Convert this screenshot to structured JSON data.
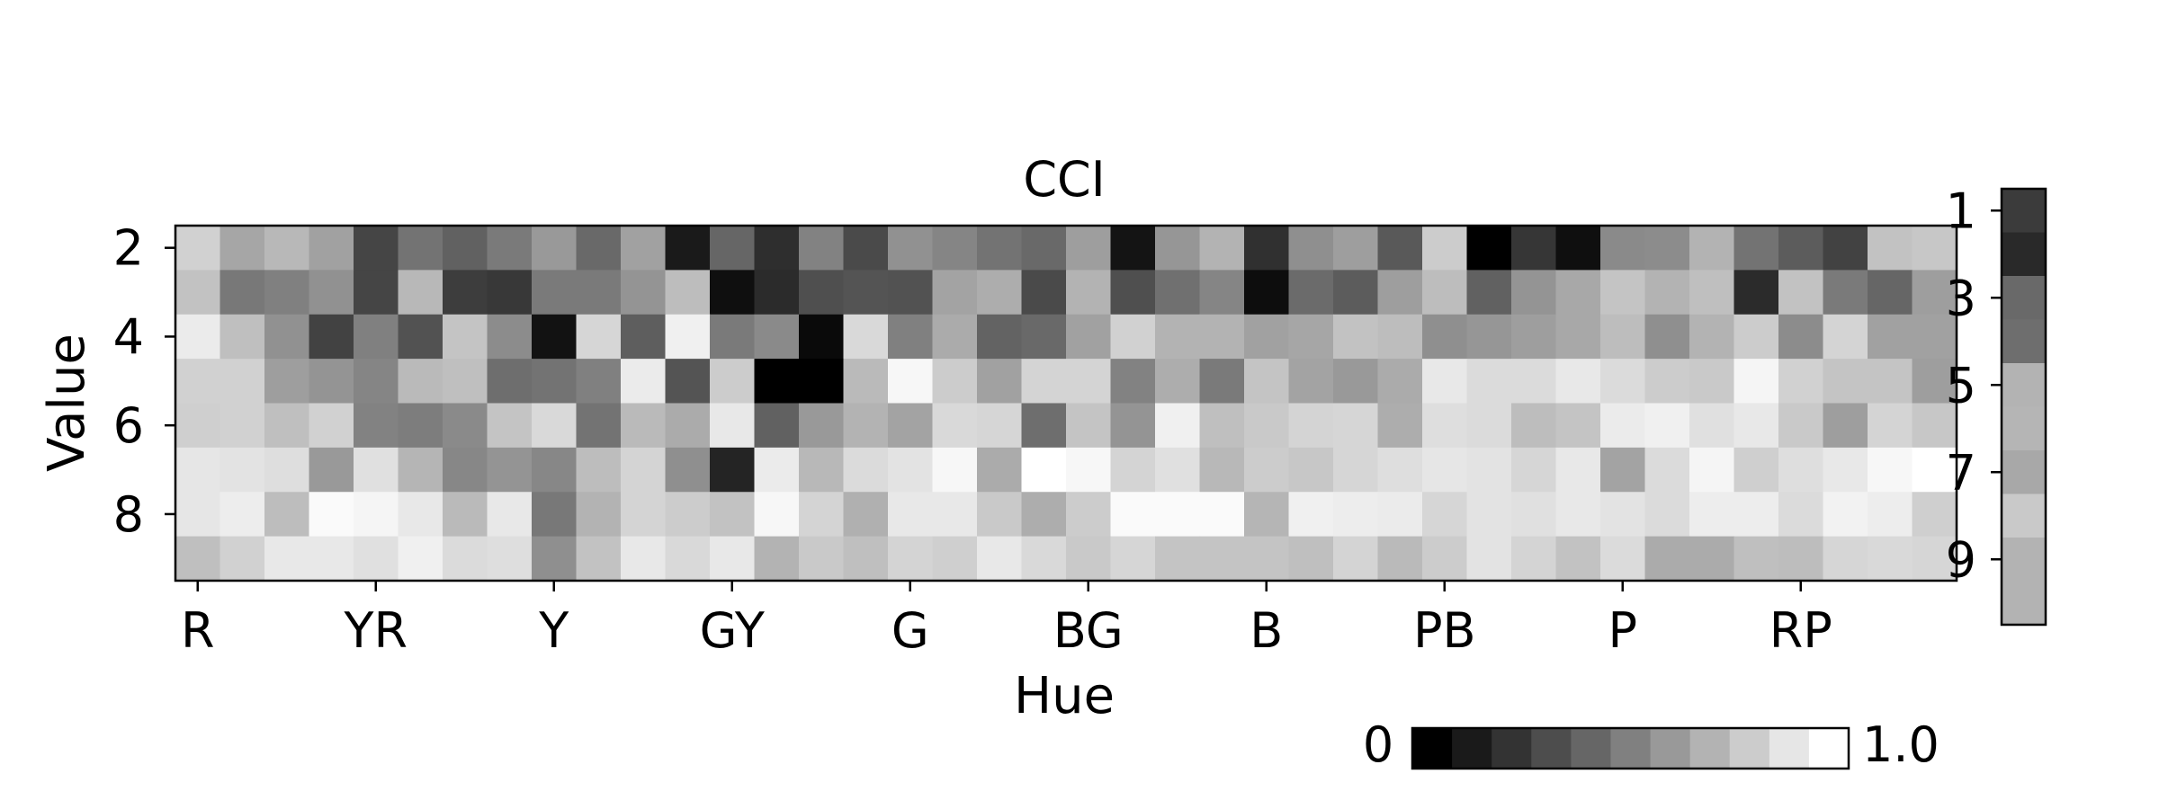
{
  "chart_data": {
    "type": "heatmap",
    "title": "CCI",
    "xlabel": "Hue",
    "ylabel": "Value",
    "x_tick_labels": [
      "R",
      "YR",
      "Y",
      "GY",
      "G",
      "BG",
      "B",
      "PB",
      "P",
      "RP"
    ],
    "y_tick_labels": [
      "2",
      "4",
      "6",
      "8"
    ],
    "y_range": [
      1.5,
      9.5
    ],
    "rows": [
      "2",
      "3",
      "4",
      "5",
      "6",
      "7",
      "8",
      "9"
    ],
    "columns": 40,
    "matrix": [
      [
        0.82,
        0.65,
        0.72,
        0.63,
        0.27,
        0.45,
        0.38,
        0.48,
        0.6,
        0.41,
        0.63,
        0.1,
        0.4,
        0.18,
        0.51,
        0.29,
        0.57,
        0.52,
        0.45,
        0.41,
        0.62,
        0.08,
        0.59,
        0.7,
        0.19,
        0.56,
        0.62,
        0.35,
        0.8,
        0.0,
        0.21,
        0.06,
        0.54,
        0.55,
        0.7,
        0.45,
        0.36,
        0.26,
        0.76,
        0.78
      ],
      [
        0.76,
        0.47,
        0.5,
        0.57,
        0.27,
        0.72,
        0.24,
        0.22,
        0.48,
        0.48,
        0.58,
        0.74,
        0.06,
        0.17,
        0.31,
        0.33,
        0.32,
        0.64,
        0.68,
        0.29,
        0.7,
        0.31,
        0.44,
        0.52,
        0.05,
        0.42,
        0.36,
        0.62,
        0.74,
        0.38,
        0.58,
        0.66,
        0.77,
        0.7,
        0.75,
        0.17,
        0.76,
        0.48,
        0.4,
        0.62
      ],
      [
        0.92,
        0.75,
        0.57,
        0.26,
        0.5,
        0.32,
        0.77,
        0.55,
        0.07,
        0.84,
        0.37,
        0.94,
        0.48,
        0.54,
        0.04,
        0.85,
        0.5,
        0.67,
        0.39,
        0.41,
        0.63,
        0.82,
        0.7,
        0.7,
        0.63,
        0.65,
        0.76,
        0.74,
        0.56,
        0.59,
        0.62,
        0.66,
        0.74,
        0.56,
        0.7,
        0.8,
        0.55,
        0.83,
        0.63,
        0.63
      ],
      [
        0.82,
        0.82,
        0.62,
        0.58,
        0.52,
        0.73,
        0.75,
        0.43,
        0.45,
        0.5,
        0.92,
        0.33,
        0.8,
        0.0,
        0.0,
        0.73,
        0.97,
        0.8,
        0.63,
        0.83,
        0.83,
        0.51,
        0.68,
        0.48,
        0.77,
        0.64,
        0.6,
        0.67,
        0.91,
        0.86,
        0.86,
        0.91,
        0.86,
        0.8,
        0.79,
        0.96,
        0.82,
        0.77,
        0.77,
        0.62
      ],
      [
        0.81,
        0.82,
        0.75,
        0.82,
        0.51,
        0.49,
        0.54,
        0.77,
        0.85,
        0.45,
        0.73,
        0.67,
        0.91,
        0.38,
        0.6,
        0.7,
        0.64,
        0.85,
        0.84,
        0.43,
        0.77,
        0.58,
        0.94,
        0.75,
        0.79,
        0.83,
        0.84,
        0.68,
        0.87,
        0.86,
        0.74,
        0.77,
        0.92,
        0.94,
        0.88,
        0.91,
        0.79,
        0.62,
        0.83,
        0.78
      ],
      [
        0.9,
        0.89,
        0.87,
        0.6,
        0.88,
        0.71,
        0.53,
        0.58,
        0.53,
        0.74,
        0.83,
        0.56,
        0.14,
        0.92,
        0.72,
        0.86,
        0.89,
        0.97,
        0.67,
        1.0,
        0.97,
        0.83,
        0.88,
        0.72,
        0.8,
        0.78,
        0.84,
        0.87,
        0.9,
        0.89,
        0.84,
        0.91,
        0.64,
        0.86,
        0.96,
        0.81,
        0.87,
        0.91,
        0.97,
        1.0
      ],
      [
        0.9,
        0.93,
        0.74,
        0.98,
        0.96,
        0.91,
        0.73,
        0.91,
        0.47,
        0.7,
        0.83,
        0.8,
        0.76,
        0.97,
        0.83,
        0.69,
        0.91,
        0.91,
        0.79,
        0.68,
        0.8,
        0.98,
        0.98,
        0.98,
        0.71,
        0.94,
        0.93,
        0.92,
        0.84,
        0.89,
        0.88,
        0.91,
        0.89,
        0.86,
        0.93,
        0.93,
        0.86,
        0.95,
        0.93,
        0.81
      ],
      [
        0.75,
        0.82,
        0.91,
        0.91,
        0.88,
        0.94,
        0.86,
        0.87,
        0.56,
        0.76,
        0.91,
        0.85,
        0.91,
        0.7,
        0.79,
        0.75,
        0.83,
        0.81,
        0.91,
        0.85,
        0.79,
        0.84,
        0.77,
        0.77,
        0.77,
        0.75,
        0.83,
        0.73,
        0.8,
        0.89,
        0.83,
        0.76,
        0.86,
        0.67,
        0.67,
        0.75,
        0.74,
        0.84,
        0.85,
        0.84
      ]
    ],
    "value_colorbar": {
      "tick_labels": [
        "1",
        "3",
        "5",
        "7",
        "9"
      ]
    },
    "hue_colorbar": {
      "min_label": "0",
      "max_label": "1.0",
      "levels": 11
    },
    "grid": false
  }
}
